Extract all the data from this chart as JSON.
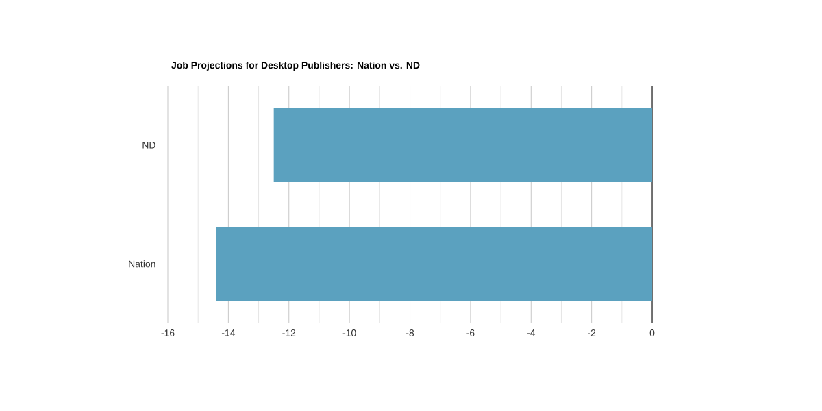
{
  "chart_data": {
    "type": "bar",
    "orientation": "horizontal",
    "title": "Job Projections for Desktop Publishers: Nation vs. ND",
    "categories": [
      "ND",
      "Nation"
    ],
    "values": [
      -12.5,
      -14.4
    ],
    "color": "#5ba1bf",
    "xlim": [
      -16,
      0
    ],
    "xticks": [
      -16,
      -14,
      -12,
      -10,
      -8,
      -6,
      -4,
      -2,
      0
    ],
    "grid": "x"
  }
}
